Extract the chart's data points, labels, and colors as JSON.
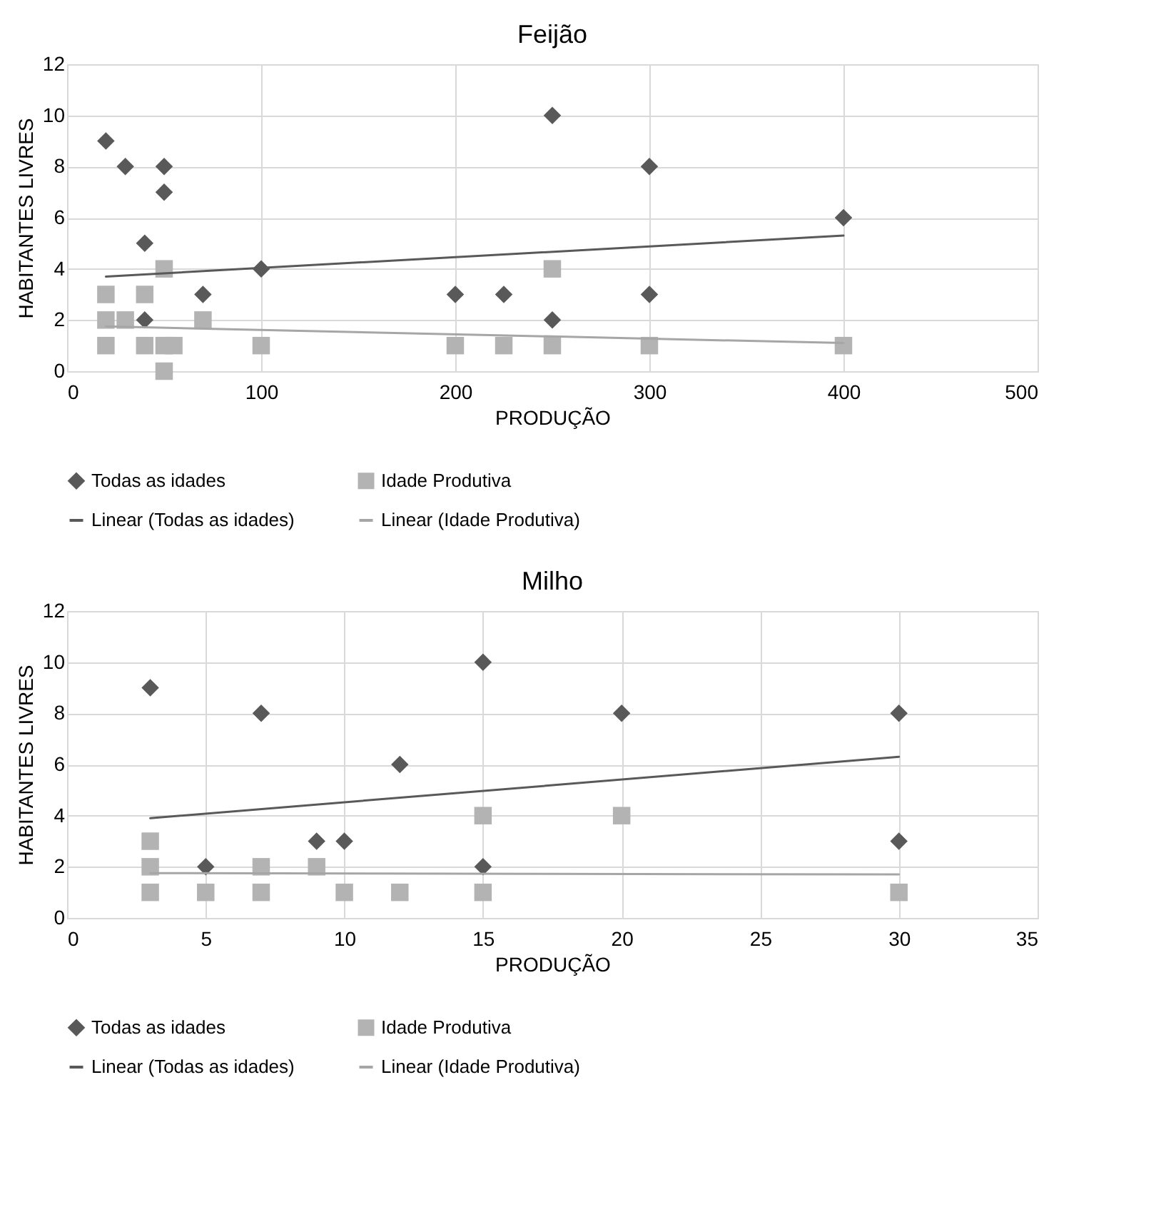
{
  "chart_data": [
    {
      "type": "scatter",
      "title": "Feijão",
      "xlabel": "PRODUÇÃO",
      "ylabel": "HABITANTES LIVRES",
      "xlim": [
        0,
        500
      ],
      "xticks": [
        0,
        100,
        200,
        300,
        400,
        500
      ],
      "ylim": [
        0,
        12
      ],
      "yticks": [
        0,
        2,
        4,
        6,
        8,
        10,
        12
      ],
      "grid": true,
      "legend": "bottom",
      "series": [
        {
          "name": "Todas as idades",
          "color": "#595959",
          "marker": "diamond",
          "x": [
            20,
            30,
            50,
            50,
            40,
            70,
            100,
            40,
            200,
            225,
            250,
            250,
            300,
            300,
            400
          ],
          "values": [
            9,
            8,
            8,
            7,
            5,
            3,
            4,
            2,
            3,
            3,
            10,
            2,
            8,
            3,
            6
          ]
        },
        {
          "name": "Idade Produtiva",
          "color": "#b3b3b3",
          "marker": "square",
          "x": [
            20,
            20,
            20,
            30,
            40,
            40,
            50,
            50,
            50,
            55,
            70,
            100,
            200,
            225,
            250,
            250,
            300,
            400
          ],
          "values": [
            3,
            2,
            1,
            2,
            3,
            1,
            4,
            1,
            0,
            1,
            2,
            1,
            1,
            1,
            4,
            1,
            1,
            1
          ]
        },
        {
          "name": "Linear (Todas as idades)",
          "type": "line",
          "color": "#595959",
          "marker": "none",
          "x": [
            20,
            400
          ],
          "values": [
            3.7,
            5.3
          ]
        },
        {
          "name": "Linear (Idade Produtiva)",
          "type": "line",
          "color": "#a6a6a6",
          "marker": "none",
          "x": [
            20,
            400
          ],
          "values": [
            1.75,
            1.1
          ]
        }
      ]
    },
    {
      "type": "scatter",
      "title": "Milho",
      "xlabel": "PRODUÇÃO",
      "ylabel": "HABITANTES LIVRES",
      "xlim": [
        0,
        35
      ],
      "xticks": [
        0,
        5,
        10,
        15,
        20,
        25,
        30,
        35
      ],
      "ylim": [
        0,
        12
      ],
      "yticks": [
        0,
        2,
        4,
        6,
        8,
        10,
        12
      ],
      "grid": true,
      "legend": "bottom",
      "series": [
        {
          "name": "Todas as idades",
          "color": "#595959",
          "marker": "diamond",
          "x": [
            3,
            5,
            7,
            9,
            10,
            12,
            15,
            15,
            20,
            30,
            30
          ],
          "values": [
            9,
            2,
            8,
            3,
            3,
            6,
            10,
            2,
            8,
            8,
            3
          ]
        },
        {
          "name": "Idade Produtiva",
          "color": "#b3b3b3",
          "marker": "square",
          "x": [
            3,
            3,
            3,
            5,
            7,
            7,
            9,
            10,
            12,
            15,
            15,
            20,
            30
          ],
          "values": [
            3,
            2,
            1,
            1,
            2,
            1,
            2,
            1,
            1,
            4,
            1,
            4,
            1
          ]
        },
        {
          "name": "Linear (Todas as idades)",
          "type": "line",
          "color": "#595959",
          "marker": "none",
          "x": [
            3,
            30
          ],
          "values": [
            3.9,
            6.3
          ]
        },
        {
          "name": "Linear (Idade Produtiva)",
          "type": "line",
          "color": "#a6a6a6",
          "marker": "none",
          "x": [
            3,
            30
          ],
          "values": [
            1.75,
            1.7
          ]
        }
      ]
    }
  ]
}
